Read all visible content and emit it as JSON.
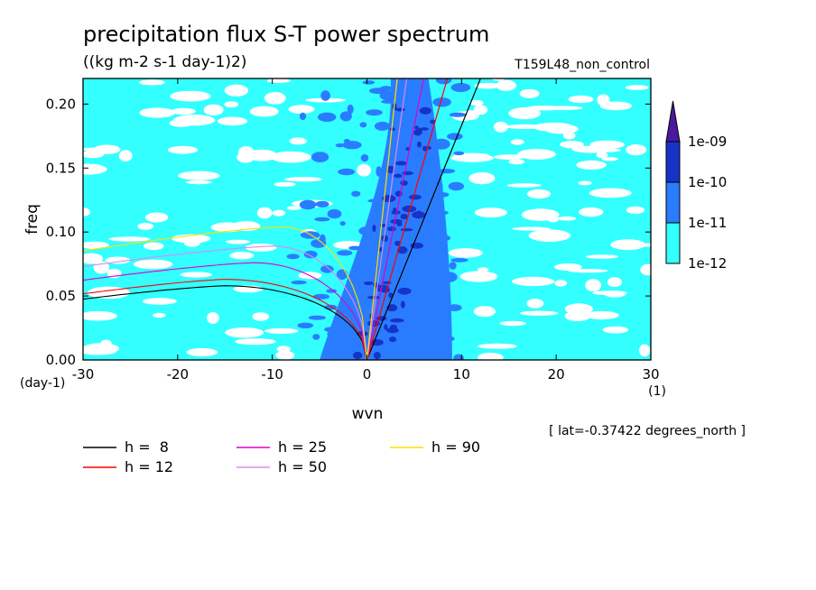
{
  "header": {
    "title": "precipitation flux S-T power spectrum",
    "units": "((kg m-2 s-1 day-1)2)",
    "run": "T159L48_non_control"
  },
  "footer": {
    "lat_note": "[ lat=-0.37422 degrees_north ]"
  },
  "chart_data": {
    "type": "heatmap",
    "title": "precipitation flux S-T power spectrum",
    "xlabel": "wvn",
    "ylabel": "freq",
    "x_unit_label": "(1)",
    "y_unit_label": "(day-1)",
    "xlim": [
      -30,
      30
    ],
    "ylim": [
      0,
      0.22
    ],
    "x_ticks": [
      "-30",
      "-20",
      "-10",
      "0",
      "10",
      "20",
      "30"
    ],
    "x_tick_values": [
      -30,
      -20,
      -10,
      0,
      10,
      20,
      30
    ],
    "y_ticks": [
      "0.00",
      "0.05",
      "0.10",
      "0.15",
      "0.20"
    ],
    "y_tick_values": [
      0,
      0.05,
      0.1,
      0.15,
      0.2
    ],
    "colorbar": {
      "levels": [
        "1e-12",
        "1e-11",
        "1e-10",
        "1e-09"
      ],
      "colors": [
        "#33ffff",
        "#2a7cff",
        "#1633c8",
        "#4c199e"
      ],
      "extend": "max"
    },
    "dispersion_curves": [
      {
        "label": "h =  8",
        "h": 8,
        "color": "#000000",
        "kelvin_slope": 12.0,
        "westward_peak": {
          "x": -15,
          "y": 0.058
        }
      },
      {
        "label": "h = 12",
        "h": 12,
        "color": "#ff0000",
        "kelvin_slope": 8.5,
        "westward_peak": {
          "x": -15,
          "y": 0.063
        }
      },
      {
        "label": "h = 25",
        "h": 25,
        "color": "#e000c8",
        "kelvin_slope": 6.0,
        "westward_peak": {
          "x": -12,
          "y": 0.076
        }
      },
      {
        "label": "h = 50",
        "h": 50,
        "color": "#dd88ee",
        "kelvin_slope": 4.2,
        "westward_peak": {
          "x": -10,
          "y": 0.089
        }
      },
      {
        "label": "h = 90",
        "h": 90,
        "color": "#ffe000",
        "kelvin_slope": 3.2,
        "westward_peak": {
          "x": -9,
          "y": 0.104
        }
      }
    ]
  }
}
